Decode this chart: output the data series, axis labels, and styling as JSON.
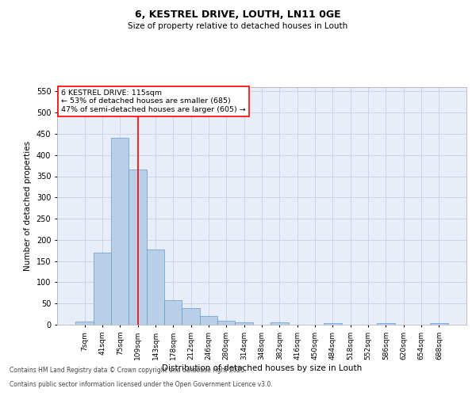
{
  "title1": "6, KESTREL DRIVE, LOUTH, LN11 0GE",
  "title2": "Size of property relative to detached houses in Louth",
  "xlabel": "Distribution of detached houses by size in Louth",
  "ylabel": "Number of detached properties",
  "categories": [
    "7sqm",
    "41sqm",
    "75sqm",
    "109sqm",
    "143sqm",
    "178sqm",
    "212sqm",
    "246sqm",
    "280sqm",
    "314sqm",
    "348sqm",
    "382sqm",
    "416sqm",
    "450sqm",
    "484sqm",
    "518sqm",
    "552sqm",
    "586sqm",
    "620sqm",
    "654sqm",
    "688sqm"
  ],
  "values": [
    8,
    170,
    440,
    365,
    178,
    57,
    40,
    21,
    10,
    5,
    0,
    5,
    0,
    0,
    3,
    0,
    0,
    4,
    0,
    0,
    4
  ],
  "bar_color": "#b8cfe8",
  "bar_edge_color": "#6699cc",
  "bar_edge_width": 0.5,
  "vline_x": 3.0,
  "vline_color": "red",
  "vline_lw": 1.2,
  "annotation_text": "6 KESTREL DRIVE: 115sqm\n← 53% of detached houses are smaller (685)\n47% of semi-detached houses are larger (605) →",
  "annotation_box_color": "white",
  "annotation_box_edge_color": "red",
  "ylim": [
    0,
    560
  ],
  "yticks": [
    0,
    50,
    100,
    150,
    200,
    250,
    300,
    350,
    400,
    450,
    500,
    550
  ],
  "grid_color": "#ccd5e8",
  "background_color": "#e8eef8",
  "footnote1": "Contains HM Land Registry data © Crown copyright and database right 2025.",
  "footnote2": "Contains public sector information licensed under the Open Government Licence v3.0."
}
